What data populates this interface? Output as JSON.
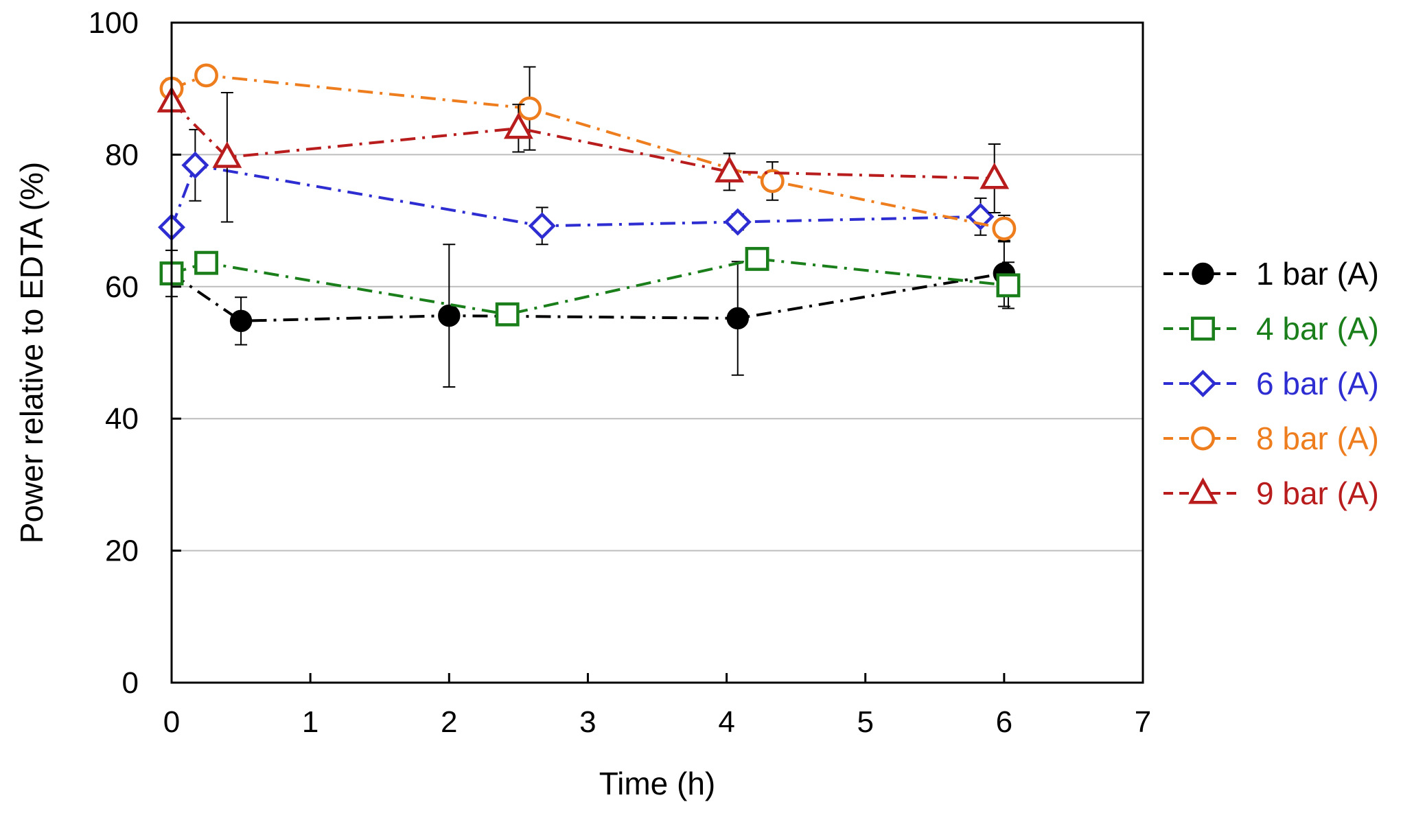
{
  "chart_data": {
    "type": "line",
    "title": "",
    "xlabel": "Time (h)",
    "ylabel": "Power relative to EDTA (%)",
    "xlim": [
      0,
      7
    ],
    "ylim": [
      0,
      100
    ],
    "x_ticks": [
      0,
      1,
      2,
      3,
      4,
      5,
      6,
      7
    ],
    "y_ticks": [
      0,
      20,
      40,
      60,
      80,
      100
    ],
    "x_tick_labels": [
      "0",
      "1",
      "2",
      "3",
      "4",
      "5",
      "6",
      "7"
    ],
    "y_tick_labels": [
      "0",
      "20",
      "40",
      "60",
      "80",
      "100"
    ],
    "grid": "horizontal",
    "legend_position": "right",
    "series": [
      {
        "name": "1 bar (A)",
        "color": "#000000",
        "marker": "filled-circle",
        "x": [
          0,
          0.5,
          2,
          4.08,
          6
        ],
        "y": [
          62,
          54.8,
          55.6,
          55.2,
          62
        ],
        "err": [
          3.5,
          3.6,
          10.8,
          8.6,
          5
        ]
      },
      {
        "name": "4 bar (A)",
        "color": "#1a7f1a",
        "marker": "open-square",
        "x": [
          0,
          0.25,
          2.42,
          4.22,
          6.03
        ],
        "y": [
          62,
          63.6,
          55.8,
          64.2,
          60.2
        ],
        "err": [
          0.6,
          0.6,
          0.6,
          0.6,
          3.5
        ]
      },
      {
        "name": "6 bar (A)",
        "color": "#2d2dd2",
        "marker": "open-diamond",
        "x": [
          0,
          0.17,
          2.67,
          4.08,
          5.83
        ],
        "y": [
          69,
          78.4,
          69.2,
          69.8,
          70.6
        ],
        "err": [
          0.6,
          5.4,
          2.8,
          1.2,
          2.8
        ]
      },
      {
        "name": "8 bar (A)",
        "color": "#ee7d1e",
        "marker": "open-circle",
        "x": [
          0,
          0.25,
          2.58,
          4.33,
          6
        ],
        "y": [
          90,
          92,
          87,
          76,
          68.8
        ],
        "err": [
          1.5,
          1.2,
          6.3,
          2.9,
          2
        ]
      },
      {
        "name": "9 bar (A)",
        "color": "#b81c1c",
        "marker": "open-triangle",
        "x": [
          0,
          0.4,
          2.5,
          4.02,
          5.93
        ],
        "y": [
          88,
          79.6,
          84,
          77.4,
          76.4
        ],
        "err": [
          0.6,
          9.8,
          3.6,
          2.8,
          5.2
        ]
      }
    ]
  }
}
